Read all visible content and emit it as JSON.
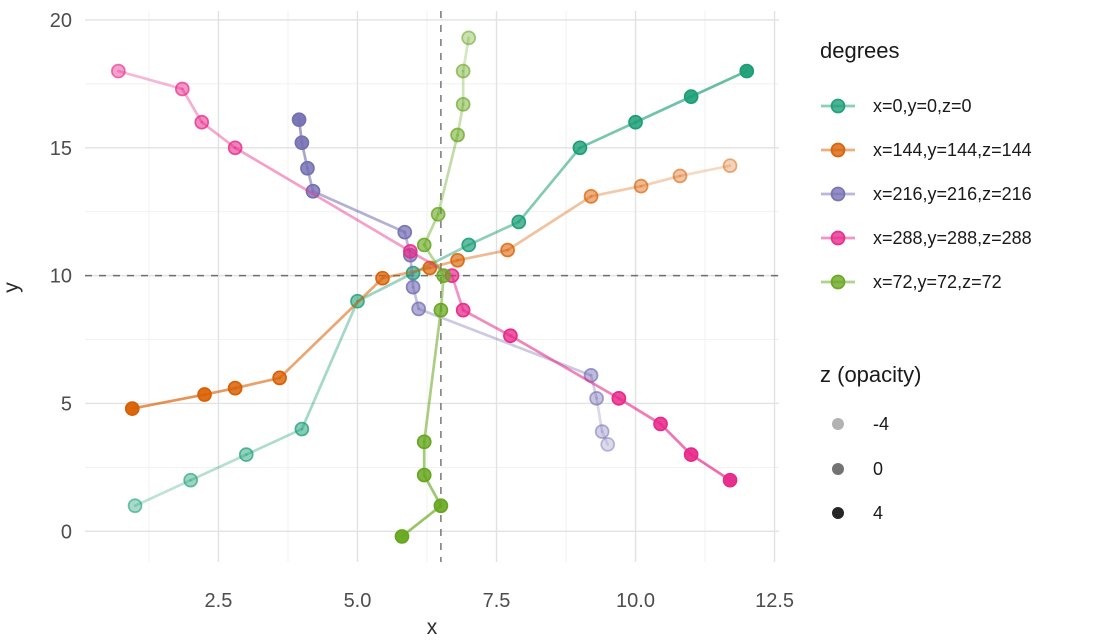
{
  "chart_data": {
    "type": "line",
    "xlabel": "x",
    "ylabel": "y",
    "xlim": [
      0.1,
      12.58
    ],
    "ylim": [
      -1.2,
      20.35
    ],
    "x_ticks": [
      2.5,
      5.0,
      7.5,
      10.0,
      12.5
    ],
    "x_tick_labels": [
      "2.5",
      "5.0",
      "7.5",
      "10.0",
      "12.5"
    ],
    "y_ticks": [
      0,
      5,
      10,
      15,
      20
    ],
    "y_tick_labels": [
      "0",
      "5",
      "10",
      "15",
      "20"
    ],
    "x_minor_gridlines": [
      1.25,
      3.75,
      6.25,
      8.75,
      11.25
    ],
    "y_minor_gridlines": [
      2.5,
      7.5,
      12.5,
      17.5
    ],
    "grid": "on",
    "reference_lines": {
      "vertical_x": 6.5,
      "horizontal_y": 10,
      "style": "dashed",
      "color": "#6e6e6e"
    },
    "legend_position": "right",
    "legend_title": "degrees",
    "series": [
      {
        "name": "x=0,y=0,z=0",
        "color": "#1b9e77",
        "points": [
          [
            1,
            1
          ],
          [
            2,
            2
          ],
          [
            3,
            3
          ],
          [
            4,
            4
          ],
          [
            5,
            9
          ],
          [
            6,
            10.1
          ],
          [
            7,
            11.2
          ],
          [
            7.9,
            12.1
          ],
          [
            9,
            15
          ],
          [
            10,
            16
          ],
          [
            11,
            17
          ],
          [
            12,
            18
          ]
        ],
        "point_alphas": [
          0.38,
          0.43,
          0.48,
          0.53,
          0.58,
          0.63,
          0.68,
          0.73,
          0.79,
          0.84,
          0.9,
          0.95
        ]
      },
      {
        "name": "x=144,y=144,z=144",
        "color": "#d95f02",
        "points": [
          [
            0.95,
            4.8
          ],
          [
            2.25,
            5.35
          ],
          [
            2.8,
            5.6
          ],
          [
            3.6,
            6.0
          ],
          [
            5.45,
            9.9
          ],
          [
            6.3,
            10.3
          ],
          [
            6.8,
            10.6
          ],
          [
            7.7,
            11.0
          ],
          [
            9.2,
            13.1
          ],
          [
            10.1,
            13.5
          ],
          [
            10.8,
            13.9
          ],
          [
            11.7,
            14.3
          ]
        ],
        "point_alphas": [
          0.95,
          0.9,
          0.84,
          0.79,
          0.73,
          0.68,
          0.63,
          0.57,
          0.5,
          0.43,
          0.36,
          0.28
        ]
      },
      {
        "name": "x=216,y=216,z=216",
        "color": "#7570b3",
        "points": [
          [
            3.95,
            16.1
          ],
          [
            4.0,
            15.2
          ],
          [
            4.1,
            14.2
          ],
          [
            4.2,
            13.3
          ],
          [
            5.85,
            11.7
          ],
          [
            5.95,
            10.8
          ],
          [
            6.0,
            9.55
          ],
          [
            6.1,
            8.7
          ],
          [
            9.2,
            6.1
          ],
          [
            9.3,
            5.2
          ],
          [
            9.4,
            3.9
          ],
          [
            9.5,
            3.4
          ]
        ],
        "point_alphas": [
          0.95,
          0.9,
          0.84,
          0.79,
          0.73,
          0.68,
          0.62,
          0.56,
          0.48,
          0.41,
          0.33,
          0.26
        ]
      },
      {
        "name": "x=288,y=288,z=288",
        "color": "#e7298a",
        "points": [
          [
            0.7,
            18.0
          ],
          [
            1.85,
            17.3
          ],
          [
            2.2,
            16.0
          ],
          [
            2.8,
            15.0
          ],
          [
            5.95,
            10.95
          ],
          [
            6.7,
            10.0
          ],
          [
            6.9,
            8.65
          ],
          [
            7.75,
            7.65
          ],
          [
            9.7,
            5.2
          ],
          [
            10.45,
            4.2
          ],
          [
            11.0,
            3.0
          ],
          [
            11.7,
            2.0
          ]
        ],
        "point_alphas": [
          0.44,
          0.49,
          0.54,
          0.59,
          0.64,
          0.69,
          0.73,
          0.78,
          0.83,
          0.88,
          0.92,
          0.97
        ]
      },
      {
        "name": "x=72,y=72,z=72",
        "color": "#66a61e",
        "points": [
          [
            5.8,
            -0.2
          ],
          [
            6.5,
            1.0
          ],
          [
            6.2,
            2.2
          ],
          [
            6.2,
            3.5
          ],
          [
            6.5,
            8.65
          ],
          [
            6.55,
            10.0
          ],
          [
            6.2,
            11.2
          ],
          [
            6.45,
            12.4
          ],
          [
            6.8,
            15.5
          ],
          [
            6.9,
            16.7
          ],
          [
            6.9,
            18.0
          ],
          [
            7.0,
            19.3
          ]
        ],
        "point_alphas": [
          0.95,
          0.9,
          0.84,
          0.79,
          0.73,
          0.68,
          0.63,
          0.57,
          0.52,
          0.46,
          0.41,
          0.35
        ]
      }
    ],
    "opacity_legend": {
      "title": "z (opacity)",
      "marker_color": "#000000",
      "entries": [
        {
          "label": "-4",
          "alpha": 0.3
        },
        {
          "label": "0",
          "alpha": 0.55
        },
        {
          "label": "4",
          "alpha": 0.85
        }
      ]
    },
    "style": {
      "major_grid_color": "#e2e2e2",
      "minor_grid_color": "#f0f0f0",
      "tick_label_color": "#4d4d4d",
      "background": "#ffffff"
    }
  }
}
